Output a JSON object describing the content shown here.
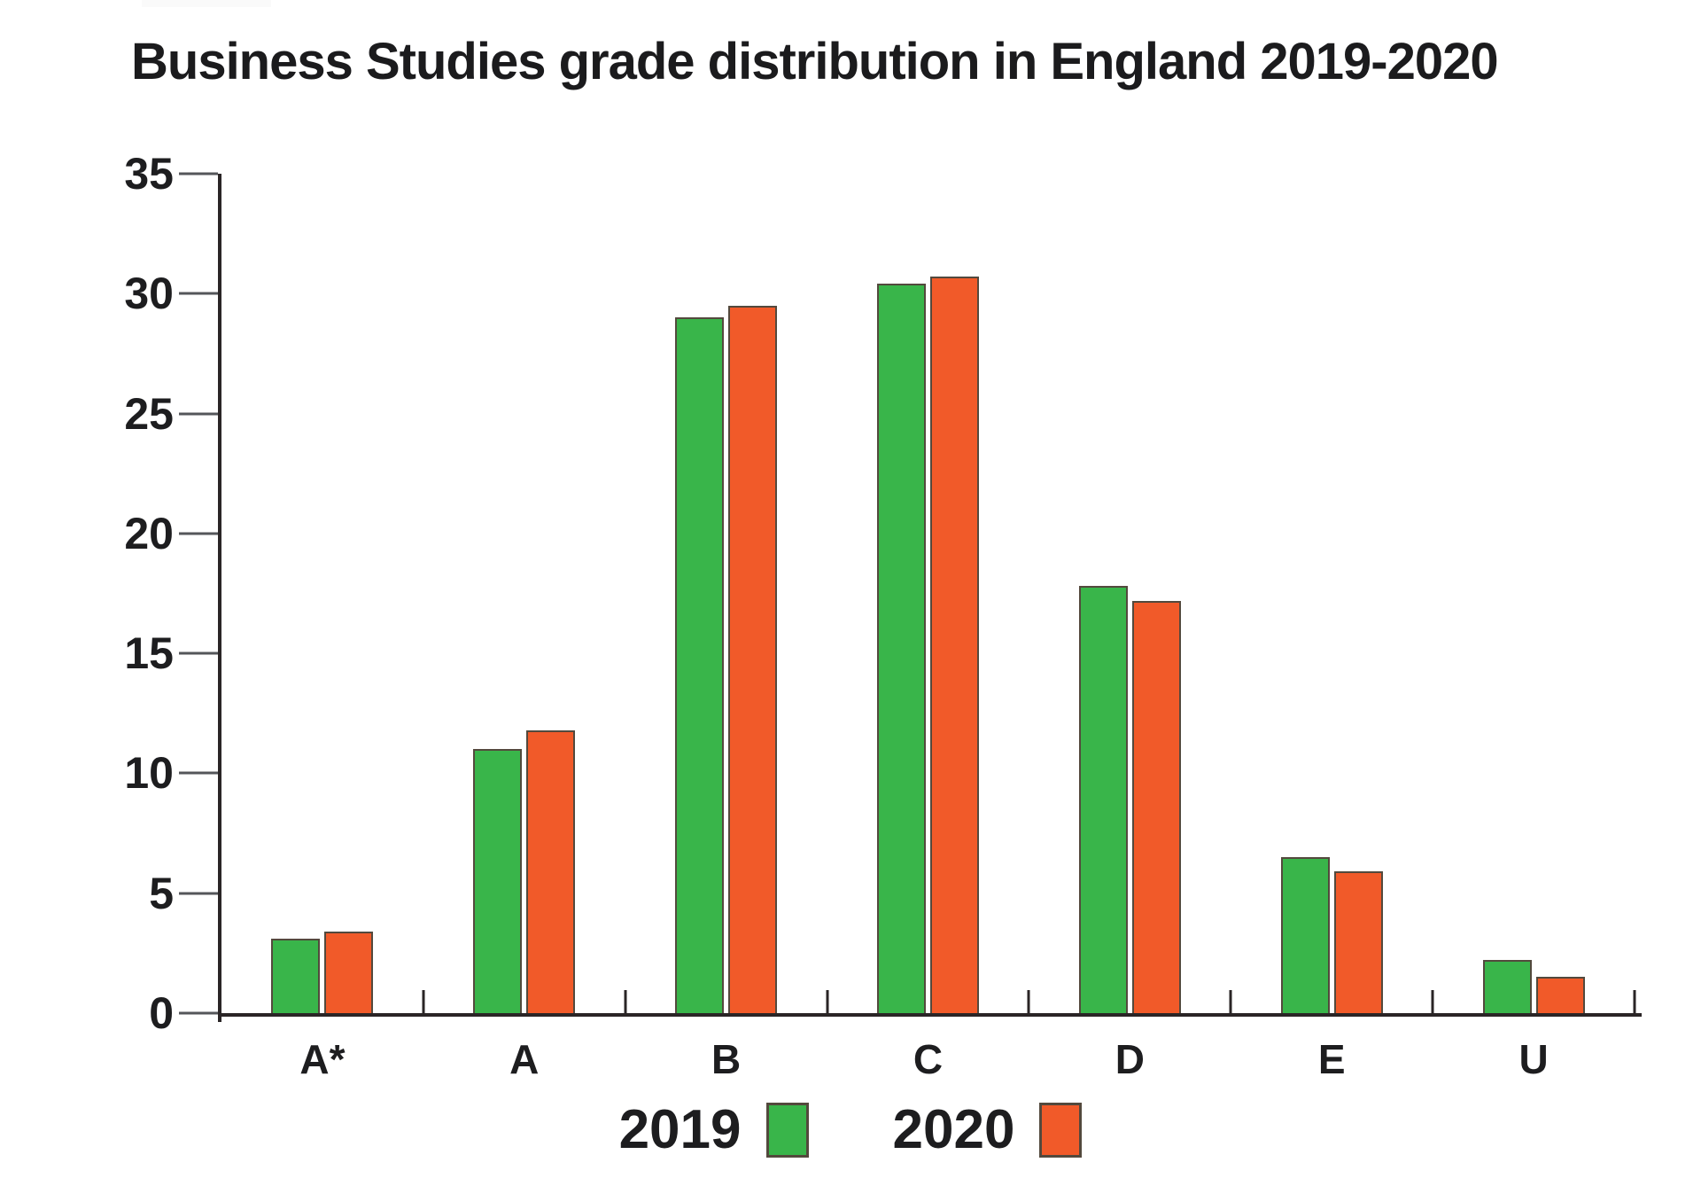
{
  "title": "Business Studies grade distribution in England 2019-2020",
  "colors": {
    "series_2019_green": "#39b54a",
    "series_2020_orange": "#f15a29",
    "axis": "#2a2526",
    "tick": "#54565a",
    "text": "#1d1d1f",
    "bar_outline": "#53493d"
  },
  "chart_data": {
    "type": "bar",
    "title": "Business Studies grade distribution in England 2019-2020",
    "categories": [
      "A*",
      "A",
      "B",
      "C",
      "D",
      "E",
      "U"
    ],
    "series": [
      {
        "name": "2019",
        "color": "#39b54a",
        "values": [
          3.1,
          11.0,
          29.0,
          30.4,
          17.8,
          6.5,
          2.2
        ]
      },
      {
        "name": "2020",
        "color": "#f15a29",
        "values": [
          3.4,
          11.8,
          29.5,
          30.7,
          17.2,
          5.9,
          1.5
        ]
      }
    ],
    "xlabel": "",
    "ylabel": "",
    "ylim": [
      0,
      35
    ],
    "yticks": [
      0,
      5,
      10,
      15,
      20,
      25,
      30,
      35
    ],
    "grid": false,
    "legend_position": "bottom"
  },
  "legend": {
    "items": [
      {
        "label": "2019",
        "color": "#39b54a"
      },
      {
        "label": "2020",
        "color": "#f15a29"
      }
    ]
  }
}
